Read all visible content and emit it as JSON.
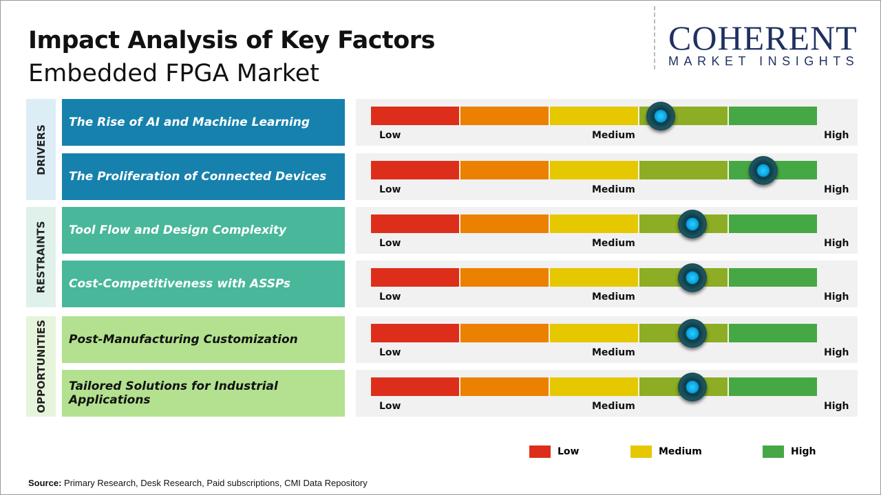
{
  "header": {
    "title": "Impact Analysis of Key Factors",
    "subtitle": "Embedded FPGA Market"
  },
  "logo": {
    "line1": "COHERENT",
    "line2": "MARKET INSIGHTS"
  },
  "chart_data": {
    "type": "gauge-table",
    "title": "Impact Analysis of Key Factors - Embedded FPGA Market",
    "scale": {
      "min_label": "Low",
      "mid_label": "Medium",
      "max_label": "High",
      "range": [
        0,
        1
      ]
    },
    "segment_colors": [
      "#dd2e1c",
      "#ec8000",
      "#e5c800",
      "#8cad24",
      "#45a845"
    ],
    "categories": [
      {
        "name": "DRIVERS",
        "bg": "#dcedf6",
        "color": "#1681ad",
        "text": "#ffffff",
        "factors": [
          {
            "label": "The Rise of AI and Machine Learning",
            "impact": 0.65
          },
          {
            "label": "The Proliferation  of Connected Devices",
            "impact": 0.88
          }
        ]
      },
      {
        "name": "RESTRAINTS",
        "bg": "#dff1ea",
        "color": "#49b799",
        "text": "#ffffff",
        "factors": [
          {
            "label": "Tool Flow and Design Complexity",
            "impact": 0.72
          },
          {
            "label": "Cost-Competitiveness  with ASSPs",
            "impact": 0.72
          }
        ]
      },
      {
        "name": "OPPORTUNITIES",
        "bg": "#e6f4dc",
        "color": "#b3e18f",
        "text": "#111111",
        "factors": [
          {
            "label": "Post-Manufacturing  Customization",
            "impact": 0.72
          },
          {
            "label": "Tailored  Solutions for Industrial Applications",
            "impact": 0.72
          }
        ]
      }
    ],
    "legend": [
      {
        "label": "Low",
        "color": "#dd2e1c"
      },
      {
        "label": "Medium",
        "color": "#e5c800"
      },
      {
        "label": "High",
        "color": "#45a845"
      }
    ]
  },
  "footer": {
    "source_label": "Source:",
    "source_text": " Primary Research, Desk Research, Paid subscriptions, CMI Data Repository"
  }
}
